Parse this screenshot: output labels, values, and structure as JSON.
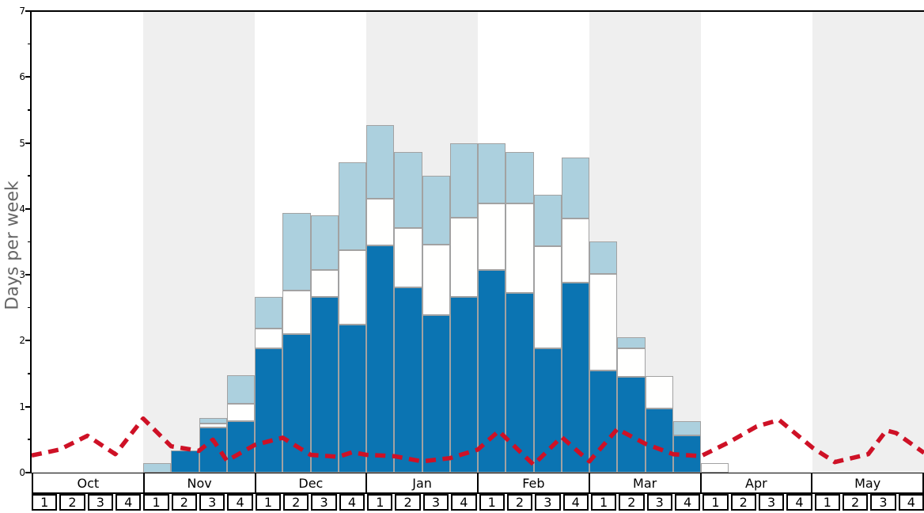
{
  "chart_data": {
    "type": "bar",
    "subtype": "stacked-bars-with-dashed-line",
    "title": "",
    "xlabel": "",
    "ylabel": "Days per week",
    "ylim": [
      0,
      7
    ],
    "yticks": [
      "0",
      "1",
      "2",
      "3",
      "4",
      "5",
      "6",
      "7"
    ],
    "minor_tick_step": 0.5,
    "grid": false,
    "legend_position": "none",
    "months": [
      "Oct",
      "Nov",
      "Dec",
      "Jan",
      "Feb",
      "Mar",
      "Apr",
      "May"
    ],
    "months_shaded": [
      false,
      true,
      false,
      true,
      false,
      true,
      false,
      true
    ],
    "week_labels": [
      "1",
      "2",
      "3",
      "4"
    ],
    "bars_unit": "days per week, cumulative stack tops (dark, mid-white, light)",
    "bars": [
      {
        "month": "Oct",
        "week": "1",
        "dark": 0,
        "mid": 0,
        "light": 0
      },
      {
        "month": "Oct",
        "week": "2",
        "dark": 0,
        "mid": 0,
        "light": 0
      },
      {
        "month": "Oct",
        "week": "3",
        "dark": 0,
        "mid": 0,
        "light": 0
      },
      {
        "month": "Oct",
        "week": "4",
        "dark": 0,
        "mid": 0,
        "light": 0
      },
      {
        "month": "Nov",
        "week": "1",
        "dark": 0,
        "mid": 0,
        "light": 0.14
      },
      {
        "month": "Nov",
        "week": "2",
        "dark": 0.34,
        "mid": 0.34,
        "light": 0.34
      },
      {
        "month": "Nov",
        "week": "3",
        "dark": 0.69,
        "mid": 0.75,
        "light": 0.83
      },
      {
        "month": "Nov",
        "week": "4",
        "dark": 0.78,
        "mid": 1.04,
        "light": 1.48
      },
      {
        "month": "Dec",
        "week": "1",
        "dark": 1.89,
        "mid": 2.19,
        "light": 2.67
      },
      {
        "month": "Dec",
        "week": "2",
        "dark": 2.1,
        "mid": 2.76,
        "light": 3.94
      },
      {
        "month": "Dec",
        "week": "3",
        "dark": 2.67,
        "mid": 3.07,
        "light": 3.9
      },
      {
        "month": "Dec",
        "week": "4",
        "dark": 2.25,
        "mid": 3.38,
        "light": 4.71
      },
      {
        "month": "Jan",
        "week": "1",
        "dark": 3.45,
        "mid": 4.16,
        "light": 5.27
      },
      {
        "month": "Jan",
        "week": "2",
        "dark": 2.81,
        "mid": 3.71,
        "light": 4.86
      },
      {
        "month": "Jan",
        "week": "3",
        "dark": 2.39,
        "mid": 3.46,
        "light": 4.5
      },
      {
        "month": "Jan",
        "week": "4",
        "dark": 2.67,
        "mid": 3.87,
        "light": 5.0
      },
      {
        "month": "Feb",
        "week": "1",
        "dark": 3.07,
        "mid": 4.08,
        "light": 4.99
      },
      {
        "month": "Feb",
        "week": "2",
        "dark": 2.73,
        "mid": 4.08,
        "light": 4.86
      },
      {
        "month": "Feb",
        "week": "3",
        "dark": 1.88,
        "mid": 3.44,
        "light": 4.22
      },
      {
        "month": "Feb",
        "week": "4",
        "dark": 2.88,
        "mid": 3.86,
        "light": 4.78
      },
      {
        "month": "Mar",
        "week": "1",
        "dark": 1.55,
        "mid": 3.02,
        "light": 3.51
      },
      {
        "month": "Mar",
        "week": "2",
        "dark": 1.45,
        "mid": 1.89,
        "light": 2.05
      },
      {
        "month": "Mar",
        "week": "3",
        "dark": 0.97,
        "mid": 1.46,
        "light": 1.46
      },
      {
        "month": "Mar",
        "week": "4",
        "dark": 0.56,
        "mid": 0.56,
        "light": 0.78
      },
      {
        "month": "Apr",
        "week": "1",
        "dark": 0,
        "mid": 0.14,
        "light": 0.14
      },
      {
        "month": "Apr",
        "week": "2",
        "dark": 0,
        "mid": 0,
        "light": 0
      },
      {
        "month": "Apr",
        "week": "3",
        "dark": 0,
        "mid": 0,
        "light": 0
      },
      {
        "month": "Apr",
        "week": "4",
        "dark": 0,
        "mid": 0,
        "light": 0
      },
      {
        "month": "May",
        "week": "1",
        "dark": 0,
        "mid": 0,
        "light": 0
      },
      {
        "month": "May",
        "week": "2",
        "dark": 0,
        "mid": 0,
        "light": 0
      },
      {
        "month": "May",
        "week": "3",
        "dark": 0,
        "mid": 0,
        "light": 0
      },
      {
        "month": "May",
        "week": "4",
        "dark": 0,
        "mid": 0,
        "light": 0
      }
    ],
    "line": {
      "name": "red-dashed-trend-line",
      "style": "dashed",
      "points_weekx_value": [
        [
          0,
          0.26
        ],
        [
          1,
          0.35
        ],
        [
          2,
          0.56
        ],
        [
          3,
          0.28
        ],
        [
          4,
          0.82
        ],
        [
          5,
          0.4
        ],
        [
          6,
          0.33
        ],
        [
          6.5,
          0.5
        ],
        [
          7,
          0.18
        ],
        [
          8,
          0.42
        ],
        [
          9,
          0.53
        ],
        [
          10,
          0.27
        ],
        [
          11,
          0.24
        ],
        [
          11.5,
          0.31
        ],
        [
          12,
          0.27
        ],
        [
          13,
          0.25
        ],
        [
          14,
          0.17
        ],
        [
          15,
          0.22
        ],
        [
          16,
          0.35
        ],
        [
          16.75,
          0.63
        ],
        [
          18,
          0.12
        ],
        [
          19,
          0.54
        ],
        [
          20,
          0.17
        ],
        [
          21,
          0.66
        ],
        [
          22,
          0.44
        ],
        [
          23,
          0.28
        ],
        [
          24,
          0.25
        ],
        [
          25,
          0.46
        ],
        [
          26,
          0.7
        ],
        [
          26.8,
          0.8
        ],
        [
          28,
          0.38
        ],
        [
          28.8,
          0.16
        ],
        [
          30,
          0.28
        ],
        [
          30.65,
          0.64
        ],
        [
          31,
          0.6
        ],
        [
          32,
          0.3
        ]
      ]
    }
  },
  "colors": {
    "dark_blue": "#0b74b2",
    "mid_white": "#fffffe",
    "light_blue": "#acd0de",
    "shaded_band": "#efefef",
    "bar_border": "#a2a2a2",
    "line_red": "#ce1126",
    "axis": "#000000",
    "ylabel_text": "#666666",
    "background": "#ffffff"
  }
}
